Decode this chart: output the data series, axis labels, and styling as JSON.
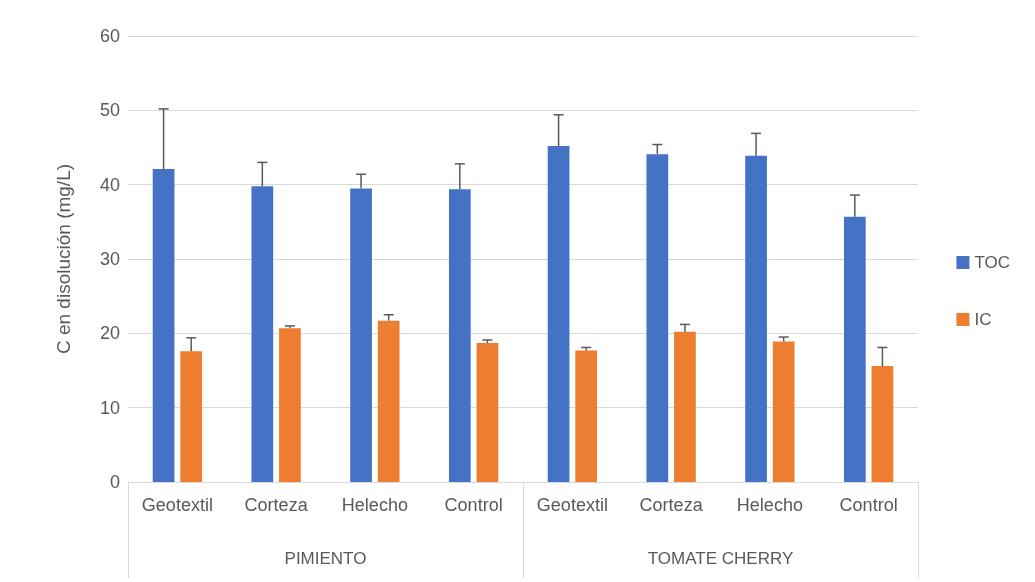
{
  "chart_data": {
    "type": "bar",
    "ylabel": "C en disolución (mg/L)",
    "categories": [
      "Geotextil",
      "Corteza",
      "Helecho",
      "Control",
      "Geotextil",
      "Corteza",
      "Helecho",
      "Control"
    ],
    "annotations": [
      "PIMIENTO",
      "TOMATE CHERRY"
    ],
    "series": [
      {
        "name": "TOC",
        "color": "#4472c4",
        "values": [
          42.1,
          39.8,
          39.5,
          39.4,
          45.2,
          44.1,
          43.9,
          35.7
        ],
        "errors": [
          [
            42.1,
            50.2
          ],
          [
            39.8,
            43.0
          ],
          [
            39.5,
            41.4
          ],
          [
            39.4,
            42.8
          ],
          [
            45.2,
            49.4
          ],
          [
            44.1,
            45.4
          ],
          [
            43.9,
            46.9
          ],
          [
            35.7,
            38.6
          ]
        ]
      },
      {
        "name": "IC",
        "color": "#ed7d31",
        "values": [
          17.6,
          20.7,
          21.7,
          18.7,
          17.7,
          20.2,
          18.9,
          15.6
        ],
        "errors": [
          [
            17.6,
            19.4
          ],
          [
            20.7,
            21.0
          ],
          [
            21.7,
            22.5
          ],
          [
            18.7,
            19.1
          ],
          [
            17.7,
            18.1
          ],
          [
            20.2,
            21.2
          ],
          [
            18.9,
            19.5
          ],
          [
            15.6,
            18.1
          ]
        ]
      }
    ],
    "ylim": [
      0,
      60
    ],
    "yticks": [
      0,
      10,
      20,
      30,
      40,
      50,
      60
    ],
    "grid": "y",
    "legend": "right"
  }
}
